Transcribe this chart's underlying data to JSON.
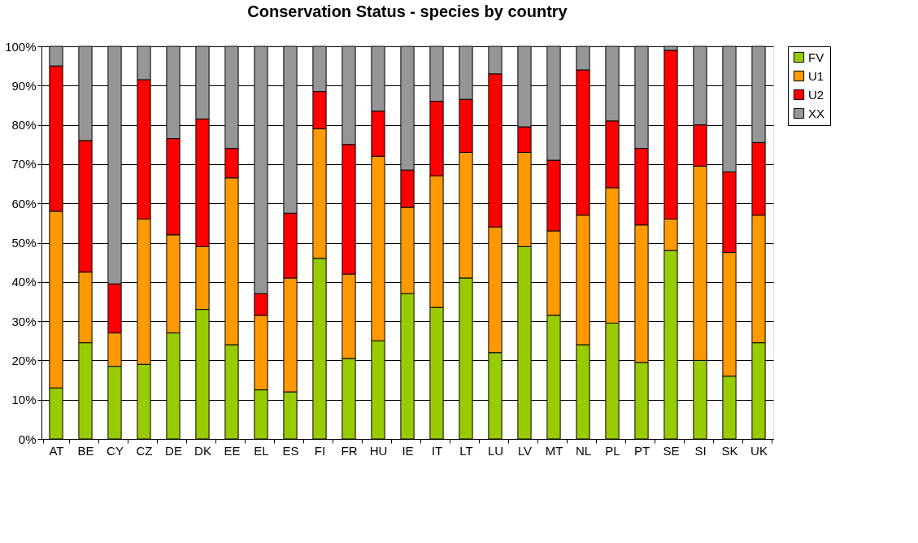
{
  "chart_data": {
    "type": "bar",
    "title": "Conservation Status - species by country",
    "stacked": true,
    "categories": [
      "AT",
      "BE",
      "CY",
      "CZ",
      "DE",
      "DK",
      "EE",
      "EL",
      "ES",
      "FI",
      "FR",
      "HU",
      "IE",
      "IT",
      "LT",
      "LU",
      "LV",
      "MT",
      "NL",
      "PL",
      "PT",
      "SE",
      "SI",
      "SK",
      "UK"
    ],
    "series": [
      {
        "name": "FV",
        "color": "#99cc00",
        "values": [
          13,
          24.5,
          18.5,
          19,
          27,
          33,
          24,
          12.5,
          12,
          46,
          20.5,
          25,
          37,
          33.5,
          41,
          22,
          49,
          31.5,
          24,
          29.5,
          19.5,
          48,
          20,
          16,
          24.5
        ]
      },
      {
        "name": "U1",
        "color": "#ff9900",
        "values": [
          45,
          18,
          8.5,
          37,
          25,
          16,
          42.5,
          19,
          29,
          33,
          21.5,
          47,
          22,
          33.5,
          32,
          32,
          24,
          21.5,
          33,
          34.5,
          35,
          8,
          49.5,
          31.5,
          32.5
        ]
      },
      {
        "name": "U2",
        "color": "#ff0000",
        "values": [
          37,
          33.5,
          12.5,
          35.5,
          24.5,
          32.5,
          7.5,
          5.5,
          16.5,
          9.5,
          33,
          11.5,
          9.5,
          19,
          13.5,
          39,
          6.5,
          18,
          37,
          17,
          19.5,
          43,
          10.5,
          20.5,
          18.5
        ]
      },
      {
        "name": "XX",
        "color": "#969696",
        "values": [
          5,
          24,
          60.5,
          8.5,
          23.5,
          18.5,
          26,
          63,
          42.5,
          11.5,
          25,
          16.5,
          31.5,
          14,
          13.5,
          7,
          20.5,
          29,
          6,
          19,
          26,
          1,
          20,
          32,
          24.5
        ]
      }
    ],
    "ylim": [
      0,
      100
    ],
    "yticks": [
      {
        "value": 0,
        "label": "0%"
      },
      {
        "value": 10,
        "label": "10%"
      },
      {
        "value": 20,
        "label": "20%"
      },
      {
        "value": 30,
        "label": "30%"
      },
      {
        "value": 40,
        "label": "40%"
      },
      {
        "value": 50,
        "label": "50%"
      },
      {
        "value": 60,
        "label": "60%"
      },
      {
        "value": 70,
        "label": "70%"
      },
      {
        "value": 80,
        "label": "80%"
      },
      {
        "value": 90,
        "label": "90%"
      },
      {
        "value": 100,
        "label": "100%"
      }
    ],
    "grid": "y",
    "legend": "right"
  }
}
